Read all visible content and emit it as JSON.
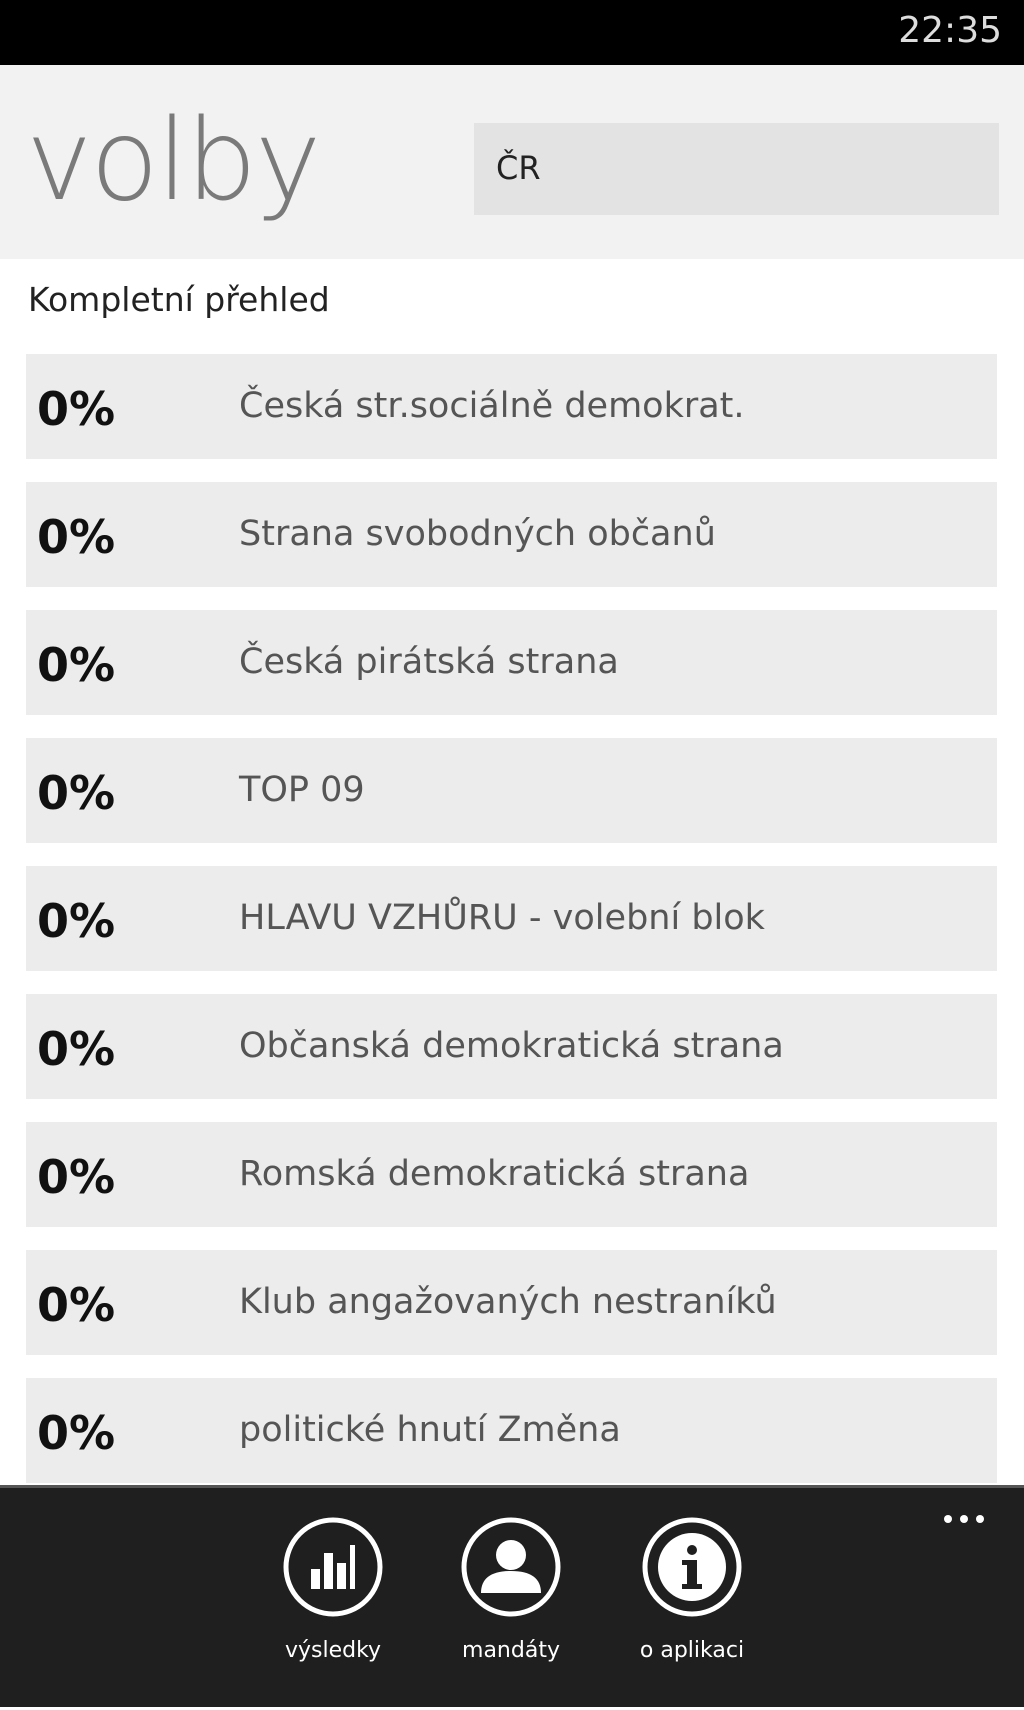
{
  "status": {
    "time": "22:35"
  },
  "header": {
    "title": "volby",
    "region": "ČR"
  },
  "section": {
    "title": "Kompletní přehled"
  },
  "list": [
    {
      "percent": "0%",
      "name": "Česká str.sociálně demokrat."
    },
    {
      "percent": "0%",
      "name": "Strana svobodných občanů"
    },
    {
      "percent": "0%",
      "name": "Česká pirátská strana"
    },
    {
      "percent": "0%",
      "name": "TOP 09"
    },
    {
      "percent": "0%",
      "name": "HLAVU VZHŮRU - volební blok"
    },
    {
      "percent": "0%",
      "name": "Občanská demokratická strana"
    },
    {
      "percent": "0%",
      "name": "Romská demokratická strana"
    },
    {
      "percent": "0%",
      "name": "Klub angažovaných nestraníků"
    },
    {
      "percent": "0%",
      "name": "politické hnutí Změna"
    }
  ],
  "appbar": {
    "buttons": [
      "výsledky",
      "mandáty",
      "o aplikaci"
    ]
  }
}
